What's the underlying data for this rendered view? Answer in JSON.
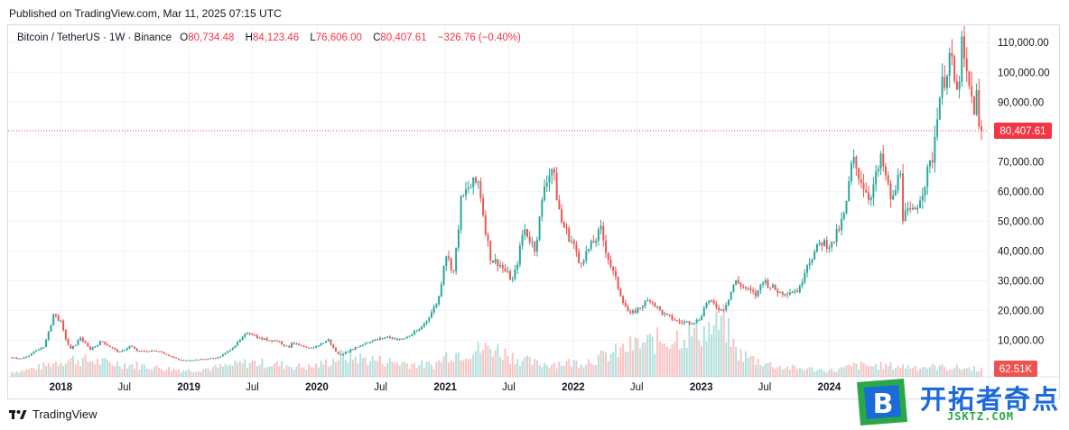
{
  "header": {
    "published": "Published on TradingView.com, Mar 11, 2025 07:15 UTC"
  },
  "legend": {
    "symbol": "Bitcoin / TetherUS · 1W · Binance",
    "o_label": "O",
    "o_value": "80,734.48",
    "h_label": "H",
    "h_value": "84,123.46",
    "l_label": "L",
    "l_value": "76,606.00",
    "c_label": "C",
    "c_value": "80,407.61",
    "change": "−326.76 (−0.40%)"
  },
  "footer": {
    "brand": "TradingView"
  },
  "watermark": {
    "name": "开拓者奇点",
    "url": "JSKTZ.COM",
    "letter": "B"
  },
  "colors": {
    "up": "#26a69a",
    "down": "#ef5350",
    "price_line": "#f23645",
    "grid": "#f0f3fa"
  },
  "chart_data": {
    "type": "candlestick",
    "y_axis": {
      "ticks": [
        10000,
        20000,
        30000,
        40000,
        50000,
        60000,
        70000,
        90000,
        100000,
        110000
      ],
      "tick_labels": [
        "10,000.00",
        "20,000.00",
        "30,000.00",
        "40,000.00",
        "50,000.00",
        "60,000.00",
        "70,000.00",
        "90,000.00",
        "100,000.00",
        "110,000.00"
      ],
      "range": [
        2000,
        114000
      ]
    },
    "x_axis": {
      "range": [
        "2017-08-14",
        "2025-03-15"
      ],
      "ticks": [
        {
          "date": "2018-01-01",
          "label": "2018",
          "bold": true
        },
        {
          "date": "2018-07-01",
          "label": "Jul",
          "bold": false
        },
        {
          "date": "2019-01-01",
          "label": "2019",
          "bold": true
        },
        {
          "date": "2019-07-01",
          "label": "Jul",
          "bold": false
        },
        {
          "date": "2020-01-01",
          "label": "2020",
          "bold": true
        },
        {
          "date": "2020-07-01",
          "label": "Jul",
          "bold": false
        },
        {
          "date": "2021-01-01",
          "label": "2021",
          "bold": true
        },
        {
          "date": "2021-07-01",
          "label": "Jul",
          "bold": false
        },
        {
          "date": "2022-01-01",
          "label": "2022",
          "bold": true
        },
        {
          "date": "2022-07-01",
          "label": "Jul",
          "bold": false
        },
        {
          "date": "2023-01-01",
          "label": "2023",
          "bold": true
        },
        {
          "date": "2023-07-01",
          "label": "Jul",
          "bold": false
        },
        {
          "date": "2024-01-01",
          "label": "2024",
          "bold": true
        }
      ]
    },
    "last_price": 80407.61,
    "last_price_label": "80,407.61",
    "volume_label": "62.51K",
    "price_path": [
      [
        "2017-08-14",
        4300
      ],
      [
        "2017-09-15",
        3800
      ],
      [
        "2017-10-15",
        5500
      ],
      [
        "2017-11-20",
        8000
      ],
      [
        "2017-12-17",
        19000
      ],
      [
        "2018-01-07",
        16500
      ],
      [
        "2018-02-05",
        7000
      ],
      [
        "2018-03-05",
        11000
      ],
      [
        "2018-04-01",
        7000
      ],
      [
        "2018-05-05",
        9800
      ],
      [
        "2018-06-25",
        6000
      ],
      [
        "2018-07-25",
        8200
      ],
      [
        "2018-08-15",
        6300
      ],
      [
        "2018-10-15",
        6500
      ],
      [
        "2018-11-20",
        4500
      ],
      [
        "2018-12-15",
        3200
      ],
      [
        "2019-02-01",
        3500
      ],
      [
        "2019-04-01",
        4200
      ],
      [
        "2019-05-15",
        8000
      ],
      [
        "2019-06-26",
        13000
      ],
      [
        "2019-08-01",
        10500
      ],
      [
        "2019-09-20",
        9800
      ],
      [
        "2019-10-20",
        7500
      ],
      [
        "2019-10-27",
        9500
      ],
      [
        "2019-12-15",
        7000
      ],
      [
        "2020-02-10",
        10200
      ],
      [
        "2020-03-12",
        5000
      ],
      [
        "2020-04-15",
        7000
      ],
      [
        "2020-06-01",
        9500
      ],
      [
        "2020-07-27",
        11200
      ],
      [
        "2020-09-05",
        10200
      ],
      [
        "2020-10-25",
        13500
      ],
      [
        "2020-11-25",
        18500
      ],
      [
        "2020-12-20",
        24000
      ],
      [
        "2021-01-08",
        40000
      ],
      [
        "2021-02-01",
        33000
      ],
      [
        "2021-02-20",
        56000
      ],
      [
        "2021-03-13",
        61000
      ],
      [
        "2021-04-14",
        63500
      ],
      [
        "2021-05-19",
        37000
      ],
      [
        "2021-06-10",
        36000
      ],
      [
        "2021-07-20",
        30000
      ],
      [
        "2021-08-20",
        48000
      ],
      [
        "2021-09-20",
        41000
      ],
      [
        "2021-10-20",
        64000
      ],
      [
        "2021-11-10",
        68000
      ],
      [
        "2021-12-05",
        50000
      ],
      [
        "2022-01-10",
        42000
      ],
      [
        "2022-01-24",
        36000
      ],
      [
        "2022-03-28",
        47000
      ],
      [
        "2022-05-10",
        30000
      ],
      [
        "2022-06-18",
        18500
      ],
      [
        "2022-08-15",
        24000
      ],
      [
        "2022-09-20",
        19000
      ],
      [
        "2022-11-09",
        16000
      ],
      [
        "2022-12-30",
        16500
      ],
      [
        "2023-01-25",
        23500
      ],
      [
        "2023-03-10",
        20000
      ],
      [
        "2023-04-14",
        30000
      ],
      [
        "2023-06-15",
        25000
      ],
      [
        "2023-07-01",
        30500
      ],
      [
        "2023-08-20",
        26000
      ],
      [
        "2023-10-15",
        27000
      ],
      [
        "2023-11-01",
        35000
      ],
      [
        "2023-12-15",
        43000
      ],
      [
        "2024-01-15",
        42000
      ],
      [
        "2024-02-20",
        52000
      ],
      [
        "2024-03-14",
        71000
      ],
      [
        "2024-05-01",
        58000
      ],
      [
        "2024-06-05",
        71000
      ],
      [
        "2024-07-05",
        56000
      ],
      [
        "2024-07-29",
        68000
      ],
      [
        "2024-08-05",
        52000
      ],
      [
        "2024-09-06",
        53000
      ],
      [
        "2024-10-29",
        72000
      ],
      [
        "2024-11-13",
        90000
      ],
      [
        "2024-12-17",
        106000
      ],
      [
        "2025-01-06",
        92000
      ],
      [
        "2025-01-20",
        108000
      ],
      [
        "2025-02-03",
        98000
      ],
      [
        "2025-02-24",
        88000
      ],
      [
        "2025-03-02",
        94000
      ],
      [
        "2025-03-10",
        80400
      ]
    ],
    "volume_path": [
      [
        "2017-08-14",
        6
      ],
      [
        "2017-12-17",
        18
      ],
      [
        "2018-02-05",
        22
      ],
      [
        "2018-08-15",
        14
      ],
      [
        "2019-01-01",
        8
      ],
      [
        "2019-06-26",
        18
      ],
      [
        "2019-12-15",
        12
      ],
      [
        "2020-03-12",
        26
      ],
      [
        "2020-11-25",
        14
      ],
      [
        "2021-01-08",
        28
      ],
      [
        "2021-05-19",
        36
      ],
      [
        "2021-09-20",
        16
      ],
      [
        "2022-01-24",
        18
      ],
      [
        "2022-06-18",
        38
      ],
      [
        "2022-09-20",
        46
      ],
      [
        "2022-11-09",
        52
      ],
      [
        "2023-01-25",
        58
      ],
      [
        "2023-03-10",
        66
      ],
      [
        "2023-04-14",
        30
      ],
      [
        "2023-08-20",
        12
      ],
      [
        "2024-01-15",
        8
      ],
      [
        "2024-03-14",
        14
      ],
      [
        "2024-11-13",
        12
      ],
      [
        "2025-03-10",
        10
      ]
    ]
  }
}
